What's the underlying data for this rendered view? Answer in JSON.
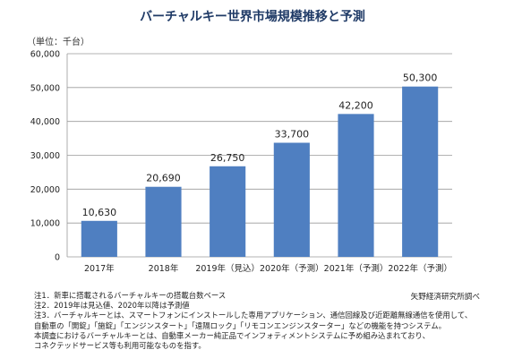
{
  "title": "バーチャルキー世界市場規模推移と予測",
  "unit": "（単位：千台）",
  "chart_data": {
    "type": "bar",
    "categories": [
      "2017年",
      "2018年",
      "2019年（見込）",
      "2020年（予測）",
      "2021年（予測）",
      "2022年（予測）"
    ],
    "values": [
      10630,
      20690,
      26750,
      33700,
      42200,
      50300
    ],
    "data_labels": [
      "10,630",
      "20,690",
      "26,750",
      "33,700",
      "42,200",
      "50,300"
    ],
    "ylim": [
      0,
      60000
    ],
    "yticks": [
      0,
      10000,
      20000,
      30000,
      40000,
      50000,
      60000
    ],
    "ytick_labels": [
      "0",
      "10,000",
      "20,000",
      "30,000",
      "40,000",
      "50,000",
      "60,000"
    ],
    "bar_color": "#4f7fc1",
    "grid": true,
    "legend": "none"
  },
  "notes": [
    "注1．新車に搭載されるバーチャルキーの搭載台数ベース",
    "注2．2019年は見込値、2020年以降は予測値",
    "注3．バーチャルキーとは、スマートフォンにインストールした専用アプリケーション、通信回線及び近距離無線通信を使用して、",
    "自動車の「開錠」「施錠」「エンジンスタート」「遠隔ロック」「リモコンエンジンスターター」などの機能を持つシステム。",
    "本調査におけるバーチャルキーとは、自動車メーカー純正品でインフォティメントシステムに予め組み込まれており、",
    "コネクテッドサービス等も利用可能なものを指す。"
  ],
  "source": "矢野経済研究所調べ"
}
